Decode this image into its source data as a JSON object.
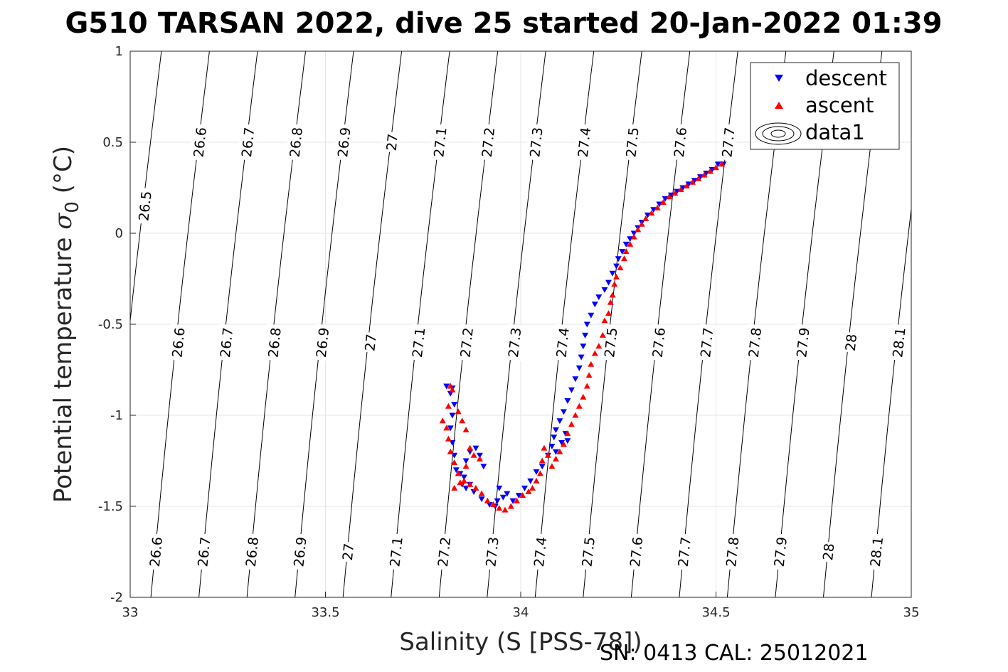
{
  "title": "G510 TARSAN 2022, dive 25 started 20-Jan-2022 01:39",
  "footer": "SN: 0413  CAL: 25012021",
  "colors": {
    "descent": "#0000ff",
    "ascent": "#ff0000",
    "grid": "#e5e5e5",
    "contour": "#000000",
    "axis": "#262626"
  },
  "chart_data": {
    "type": "scatter",
    "title": "G510 TARSAN 2022, dive 25 started 20-Jan-2022 01:39",
    "xlabel": "Salinity (S [PSS-78])",
    "ylabel_main": "Potential temperature ",
    "ylabel_sigma": "σ",
    "ylabel_sub": "0",
    "ylabel_unit": " (°C)",
    "xlim": [
      33,
      35
    ],
    "ylim": [
      -2,
      1
    ],
    "xticks": [
      "33",
      "33.5",
      "34",
      "34.5",
      "35"
    ],
    "xtick_values": [
      33,
      33.5,
      34,
      34.5,
      35
    ],
    "yticks": [
      "-2",
      "-1.5",
      "-1",
      "-0.5",
      "0",
      "0.5",
      "1"
    ],
    "ytick_values": [
      -2,
      -1.5,
      -1,
      -0.5,
      0,
      0.5,
      1
    ],
    "grid": true,
    "legend": {
      "placement": "top-right",
      "entries": [
        "descent",
        "ascent",
        "data1"
      ]
    },
    "contours": {
      "levels": [
        26.5,
        26.6,
        26.7,
        26.8,
        26.9,
        27,
        27.1,
        27.2,
        27.3,
        27.4,
        27.5,
        27.6,
        27.7,
        27.8,
        27.9,
        28,
        28.1
      ],
      "labels": [
        "26.5",
        "26.6",
        "26.7",
        "26.8",
        "26.9",
        "27",
        "27.1",
        "27.2",
        "27.3",
        "27.4",
        "27.5",
        "27.6",
        "27.7",
        "27.8",
        "27.9",
        "28",
        "28.1"
      ],
      "s_at_bottom": [
        32.93,
        33.053,
        33.176,
        33.299,
        33.422,
        33.545,
        33.668,
        33.791,
        33.914,
        34.037,
        34.16,
        34.283,
        34.406,
        34.529,
        34.652,
        34.775,
        34.898
      ],
      "s_at_top": [
        33.08,
        33.203,
        33.326,
        33.449,
        33.572,
        33.695,
        33.818,
        33.941,
        34.064,
        34.187,
        34.31,
        34.433,
        34.556,
        34.679,
        34.802,
        34.925,
        35.048
      ],
      "label_rows_theta": [
        -1.75,
        -0.6,
        0.5
      ],
      "label_rows_levels": [
        [
          26.6,
          26.7,
          26.8,
          26.9,
          27,
          27.1,
          27.2,
          27.3,
          27.4,
          27.5,
          27.6,
          27.7,
          27.8,
          27.9,
          28,
          28.1
        ],
        [
          26.6,
          26.7,
          26.8,
          26.9,
          27,
          27.1,
          27.2,
          27.3,
          27.4,
          27.5,
          27.6,
          27.7,
          27.8,
          27.9,
          28,
          28.1
        ],
        [
          26.6,
          26.7,
          26.8,
          26.9,
          27,
          27.1,
          27.2,
          27.3,
          27.4,
          27.5,
          27.6,
          27.7
        ]
      ],
      "extra_label": {
        "level": 26.5,
        "theta": 0.15
      }
    },
    "series": [
      {
        "name": "descent",
        "marker": "triangle-down",
        "points": [
          [
            34.519,
            0.38
          ],
          [
            34.505,
            0.38
          ],
          [
            34.49,
            0.35
          ],
          [
            34.475,
            0.33
          ],
          [
            34.46,
            0.31
          ],
          [
            34.445,
            0.29
          ],
          [
            34.43,
            0.27
          ],
          [
            34.415,
            0.25
          ],
          [
            34.4,
            0.23
          ],
          [
            34.385,
            0.21
          ],
          [
            34.37,
            0.19
          ],
          [
            34.355,
            0.16
          ],
          [
            34.34,
            0.13
          ],
          [
            34.325,
            0.1
          ],
          [
            34.31,
            0.06
          ],
          [
            34.3,
            0.03
          ],
          [
            34.29,
            0.0
          ],
          [
            34.28,
            -0.03
          ],
          [
            34.27,
            -0.06
          ],
          [
            34.26,
            -0.1
          ],
          [
            34.25,
            -0.14
          ],
          [
            34.245,
            -0.18
          ],
          [
            34.235,
            -0.22
          ],
          [
            34.225,
            -0.27
          ],
          [
            34.215,
            -0.31
          ],
          [
            34.2,
            -0.35
          ],
          [
            34.19,
            -0.39
          ],
          [
            34.18,
            -0.45
          ],
          [
            34.17,
            -0.5
          ],
          [
            34.165,
            -0.56
          ],
          [
            34.16,
            -0.62
          ],
          [
            34.155,
            -0.68
          ],
          [
            34.15,
            -0.74
          ],
          [
            34.14,
            -0.8
          ],
          [
            34.13,
            -0.86
          ],
          [
            34.12,
            -0.92
          ],
          [
            34.11,
            -0.98
          ],
          [
            34.1,
            -1.03
          ],
          [
            34.09,
            -1.08
          ],
          [
            34.085,
            -1.12
          ],
          [
            34.08,
            -1.17
          ],
          [
            34.09,
            -1.2
          ],
          [
            34.105,
            -1.15
          ],
          [
            34.115,
            -1.1
          ],
          [
            34.12,
            -1.14
          ],
          [
            34.07,
            -1.22
          ],
          [
            34.055,
            -1.28
          ],
          [
            34.04,
            -1.31
          ],
          [
            34.025,
            -1.36
          ],
          [
            34.01,
            -1.4
          ],
          [
            33.995,
            -1.44
          ],
          [
            33.98,
            -1.47
          ],
          [
            33.965,
            -1.43
          ],
          [
            33.955,
            -1.45
          ],
          [
            33.945,
            -1.4
          ],
          [
            33.94,
            -1.47
          ],
          [
            33.935,
            -1.5
          ],
          [
            33.92,
            -1.49
          ],
          [
            33.9,
            -1.46
          ],
          [
            33.88,
            -1.42
          ],
          [
            33.86,
            -1.4
          ],
          [
            33.85,
            -1.38
          ],
          [
            33.845,
            -1.32
          ],
          [
            33.86,
            -1.25
          ],
          [
            33.87,
            -1.2
          ],
          [
            33.885,
            -1.18
          ],
          [
            33.895,
            -1.22
          ],
          [
            33.905,
            -1.28
          ],
          [
            33.87,
            -1.38
          ],
          [
            33.855,
            -1.34
          ],
          [
            33.835,
            -1.3
          ],
          [
            33.83,
            -1.22
          ],
          [
            33.825,
            -1.15
          ],
          [
            33.82,
            -1.07
          ],
          [
            33.825,
            -1.0
          ],
          [
            33.83,
            -0.94
          ],
          [
            33.82,
            -0.88
          ],
          [
            33.81,
            -0.84
          ],
          [
            33.825,
            -0.85
          ]
        ]
      },
      {
        "name": "ascent",
        "marker": "triangle-up",
        "points": [
          [
            34.515,
            0.38
          ],
          [
            34.5,
            0.36
          ],
          [
            34.485,
            0.34
          ],
          [
            34.47,
            0.32
          ],
          [
            34.455,
            0.3
          ],
          [
            34.44,
            0.28
          ],
          [
            34.425,
            0.26
          ],
          [
            34.41,
            0.24
          ],
          [
            34.395,
            0.22
          ],
          [
            34.38,
            0.2
          ],
          [
            34.365,
            0.17
          ],
          [
            34.35,
            0.14
          ],
          [
            34.335,
            0.11
          ],
          [
            34.32,
            0.08
          ],
          [
            34.31,
            0.05
          ],
          [
            34.3,
            0.02
          ],
          [
            34.29,
            -0.02
          ],
          [
            34.28,
            -0.06
          ],
          [
            34.27,
            -0.1
          ],
          [
            34.265,
            -0.14
          ],
          [
            34.255,
            -0.19
          ],
          [
            34.245,
            -0.24
          ],
          [
            34.24,
            -0.28
          ],
          [
            34.235,
            -0.34
          ],
          [
            34.23,
            -0.38
          ],
          [
            34.225,
            -0.44
          ],
          [
            34.215,
            -0.48
          ],
          [
            34.21,
            -0.56
          ],
          [
            34.2,
            -0.62
          ],
          [
            34.19,
            -0.66
          ],
          [
            34.18,
            -0.72
          ],
          [
            34.175,
            -0.78
          ],
          [
            34.17,
            -0.84
          ],
          [
            34.16,
            -0.9
          ],
          [
            34.15,
            -0.95
          ],
          [
            34.14,
            -1.0
          ],
          [
            34.13,
            -1.05
          ],
          [
            34.12,
            -1.1
          ],
          [
            34.11,
            -1.16
          ],
          [
            34.1,
            -1.2
          ],
          [
            34.09,
            -1.24
          ],
          [
            34.08,
            -1.28
          ],
          [
            34.07,
            -1.22
          ],
          [
            34.06,
            -1.18
          ],
          [
            34.055,
            -1.25
          ],
          [
            34.05,
            -1.32
          ],
          [
            34.04,
            -1.36
          ],
          [
            34.03,
            -1.4
          ],
          [
            34.02,
            -1.42
          ],
          [
            34.005,
            -1.44
          ],
          [
            33.99,
            -1.47
          ],
          [
            33.975,
            -1.5
          ],
          [
            33.96,
            -1.52
          ],
          [
            33.945,
            -1.51
          ],
          [
            33.93,
            -1.49
          ],
          [
            33.915,
            -1.47
          ],
          [
            33.9,
            -1.43
          ],
          [
            33.885,
            -1.4
          ],
          [
            33.87,
            -1.38
          ],
          [
            33.855,
            -1.36
          ],
          [
            33.84,
            -1.32
          ],
          [
            33.83,
            -1.26
          ],
          [
            33.82,
            -1.2
          ],
          [
            33.815,
            -1.13
          ],
          [
            33.81,
            -1.07
          ],
          [
            33.8,
            -1.03
          ],
          [
            33.815,
            -0.95
          ],
          [
            33.825,
            -0.86
          ],
          [
            33.84,
            -0.98
          ],
          [
            33.85,
            -1.03
          ],
          [
            33.86,
            -1.08
          ],
          [
            33.87,
            -1.18
          ],
          [
            33.88,
            -1.22
          ],
          [
            33.895,
            -1.24
          ],
          [
            33.86,
            -1.28
          ],
          [
            33.845,
            -1.37
          ],
          [
            33.83,
            -1.4
          ],
          [
            33.82,
            -0.84
          ]
        ]
      }
    ]
  }
}
